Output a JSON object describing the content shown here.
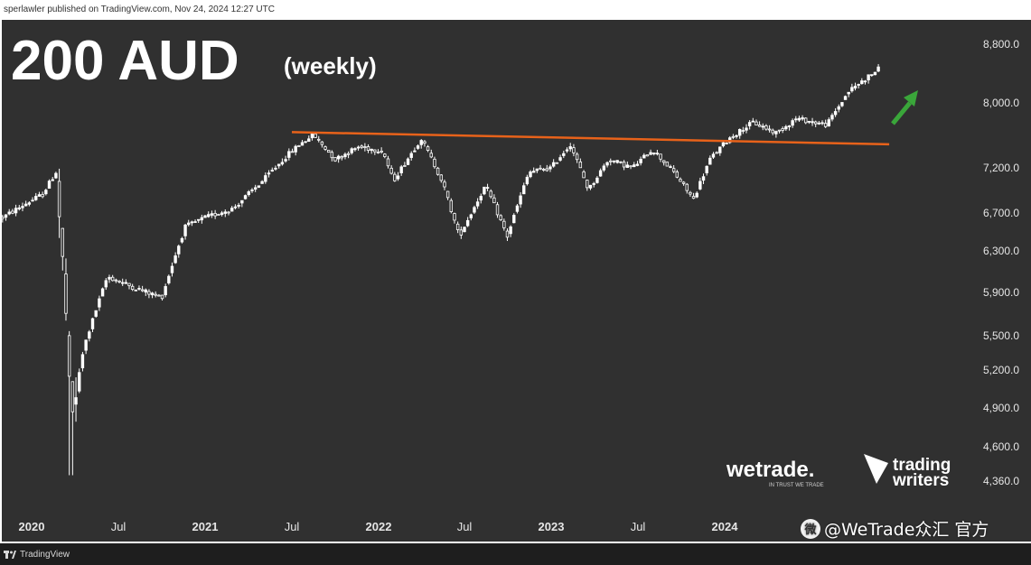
{
  "header": {
    "published_text": "sperlawler published on TradingView.com, Nov 24, 2024 12:27 UTC"
  },
  "footer": {
    "brand": "TradingView"
  },
  "watermark": {
    "text": "@WeTrade众汇 官方"
  },
  "brands": {
    "wetrade_name": "wetrade.",
    "wetrade_tagline": "IN TRUST WE TRADE",
    "tw_line1": "trading",
    "tw_line2": "writers"
  },
  "colors": {
    "background": "#303030",
    "candle": "#ffffff",
    "resistance_line": "#e8621a",
    "arrow": "#3aa63a",
    "axis_text": "#e6e6e6"
  },
  "chart_data": {
    "type": "candlestick",
    "title": "200 AUD",
    "subtitle": "(weekly)",
    "timeframe": "weekly",
    "x_tick_labels": [
      "2020",
      "Jul",
      "2021",
      "Jul",
      "2022",
      "Jul",
      "2023",
      "Jul",
      "2024"
    ],
    "y_tick_labels": [
      "8,800.0",
      "8,000.0",
      "7,200.0",
      "6,700.0",
      "6,300.0",
      "5,900.0",
      "5,500.0",
      "5,200.0",
      "4,900.0",
      "4,600.0",
      "4,360.0"
    ],
    "y_ticks": [
      8800,
      8000,
      7200,
      6700,
      6300,
      5900,
      5500,
      5200,
      4900,
      4600,
      4360
    ],
    "ylim": [
      4250,
      9100
    ],
    "x_range": [
      "2019-11-01",
      "2024-12-31"
    ],
    "resistance_line": {
      "start": {
        "date": "2021-07-01",
        "price": 7630
      },
      "end": {
        "date": "2024-12-15",
        "price": 7480
      }
    },
    "trend_arrow": {
      "direction": "up"
    },
    "series_anchors": [
      [
        "2019-11-01",
        6650
      ],
      [
        "2019-12-20",
        6800
      ],
      [
        "2020-01-24",
        6900
      ],
      [
        "2020-02-21",
        7150
      ],
      [
        "2020-03-13",
        5700
      ],
      [
        "2020-03-23",
        4750
      ],
      [
        "2020-04-20",
        5400
      ],
      [
        "2020-06-08",
        6050
      ],
      [
        "2020-08-01",
        5950
      ],
      [
        "2020-10-01",
        5850
      ],
      [
        "2020-11-20",
        6550
      ],
      [
        "2021-01-01",
        6650
      ],
      [
        "2021-03-01",
        6750
      ],
      [
        "2021-05-01",
        7050
      ],
      [
        "2021-07-01",
        7400
      ],
      [
        "2021-08-15",
        7600
      ],
      [
        "2021-10-01",
        7300
      ],
      [
        "2021-11-20",
        7450
      ],
      [
        "2022-01-10",
        7400
      ],
      [
        "2022-02-01",
        7050
      ],
      [
        "2022-04-01",
        7550
      ],
      [
        "2022-05-15",
        7050
      ],
      [
        "2022-06-20",
        6450
      ],
      [
        "2022-08-15",
        7000
      ],
      [
        "2022-09-30",
        6450
      ],
      [
        "2022-11-15",
        7150
      ],
      [
        "2023-01-01",
        7200
      ],
      [
        "2023-02-10",
        7480
      ],
      [
        "2023-03-20",
        6950
      ],
      [
        "2023-05-01",
        7300
      ],
      [
        "2023-06-20",
        7200
      ],
      [
        "2023-08-01",
        7420
      ],
      [
        "2023-09-15",
        7150
      ],
      [
        "2023-10-27",
        6850
      ],
      [
        "2023-12-01",
        7300
      ],
      [
        "2024-01-10",
        7550
      ],
      [
        "2024-03-01",
        7750
      ],
      [
        "2024-04-20",
        7620
      ],
      [
        "2024-06-01",
        7800
      ],
      [
        "2024-08-05",
        7720
      ],
      [
        "2024-09-20",
        8150
      ],
      [
        "2024-11-22",
        8450
      ]
    ]
  }
}
